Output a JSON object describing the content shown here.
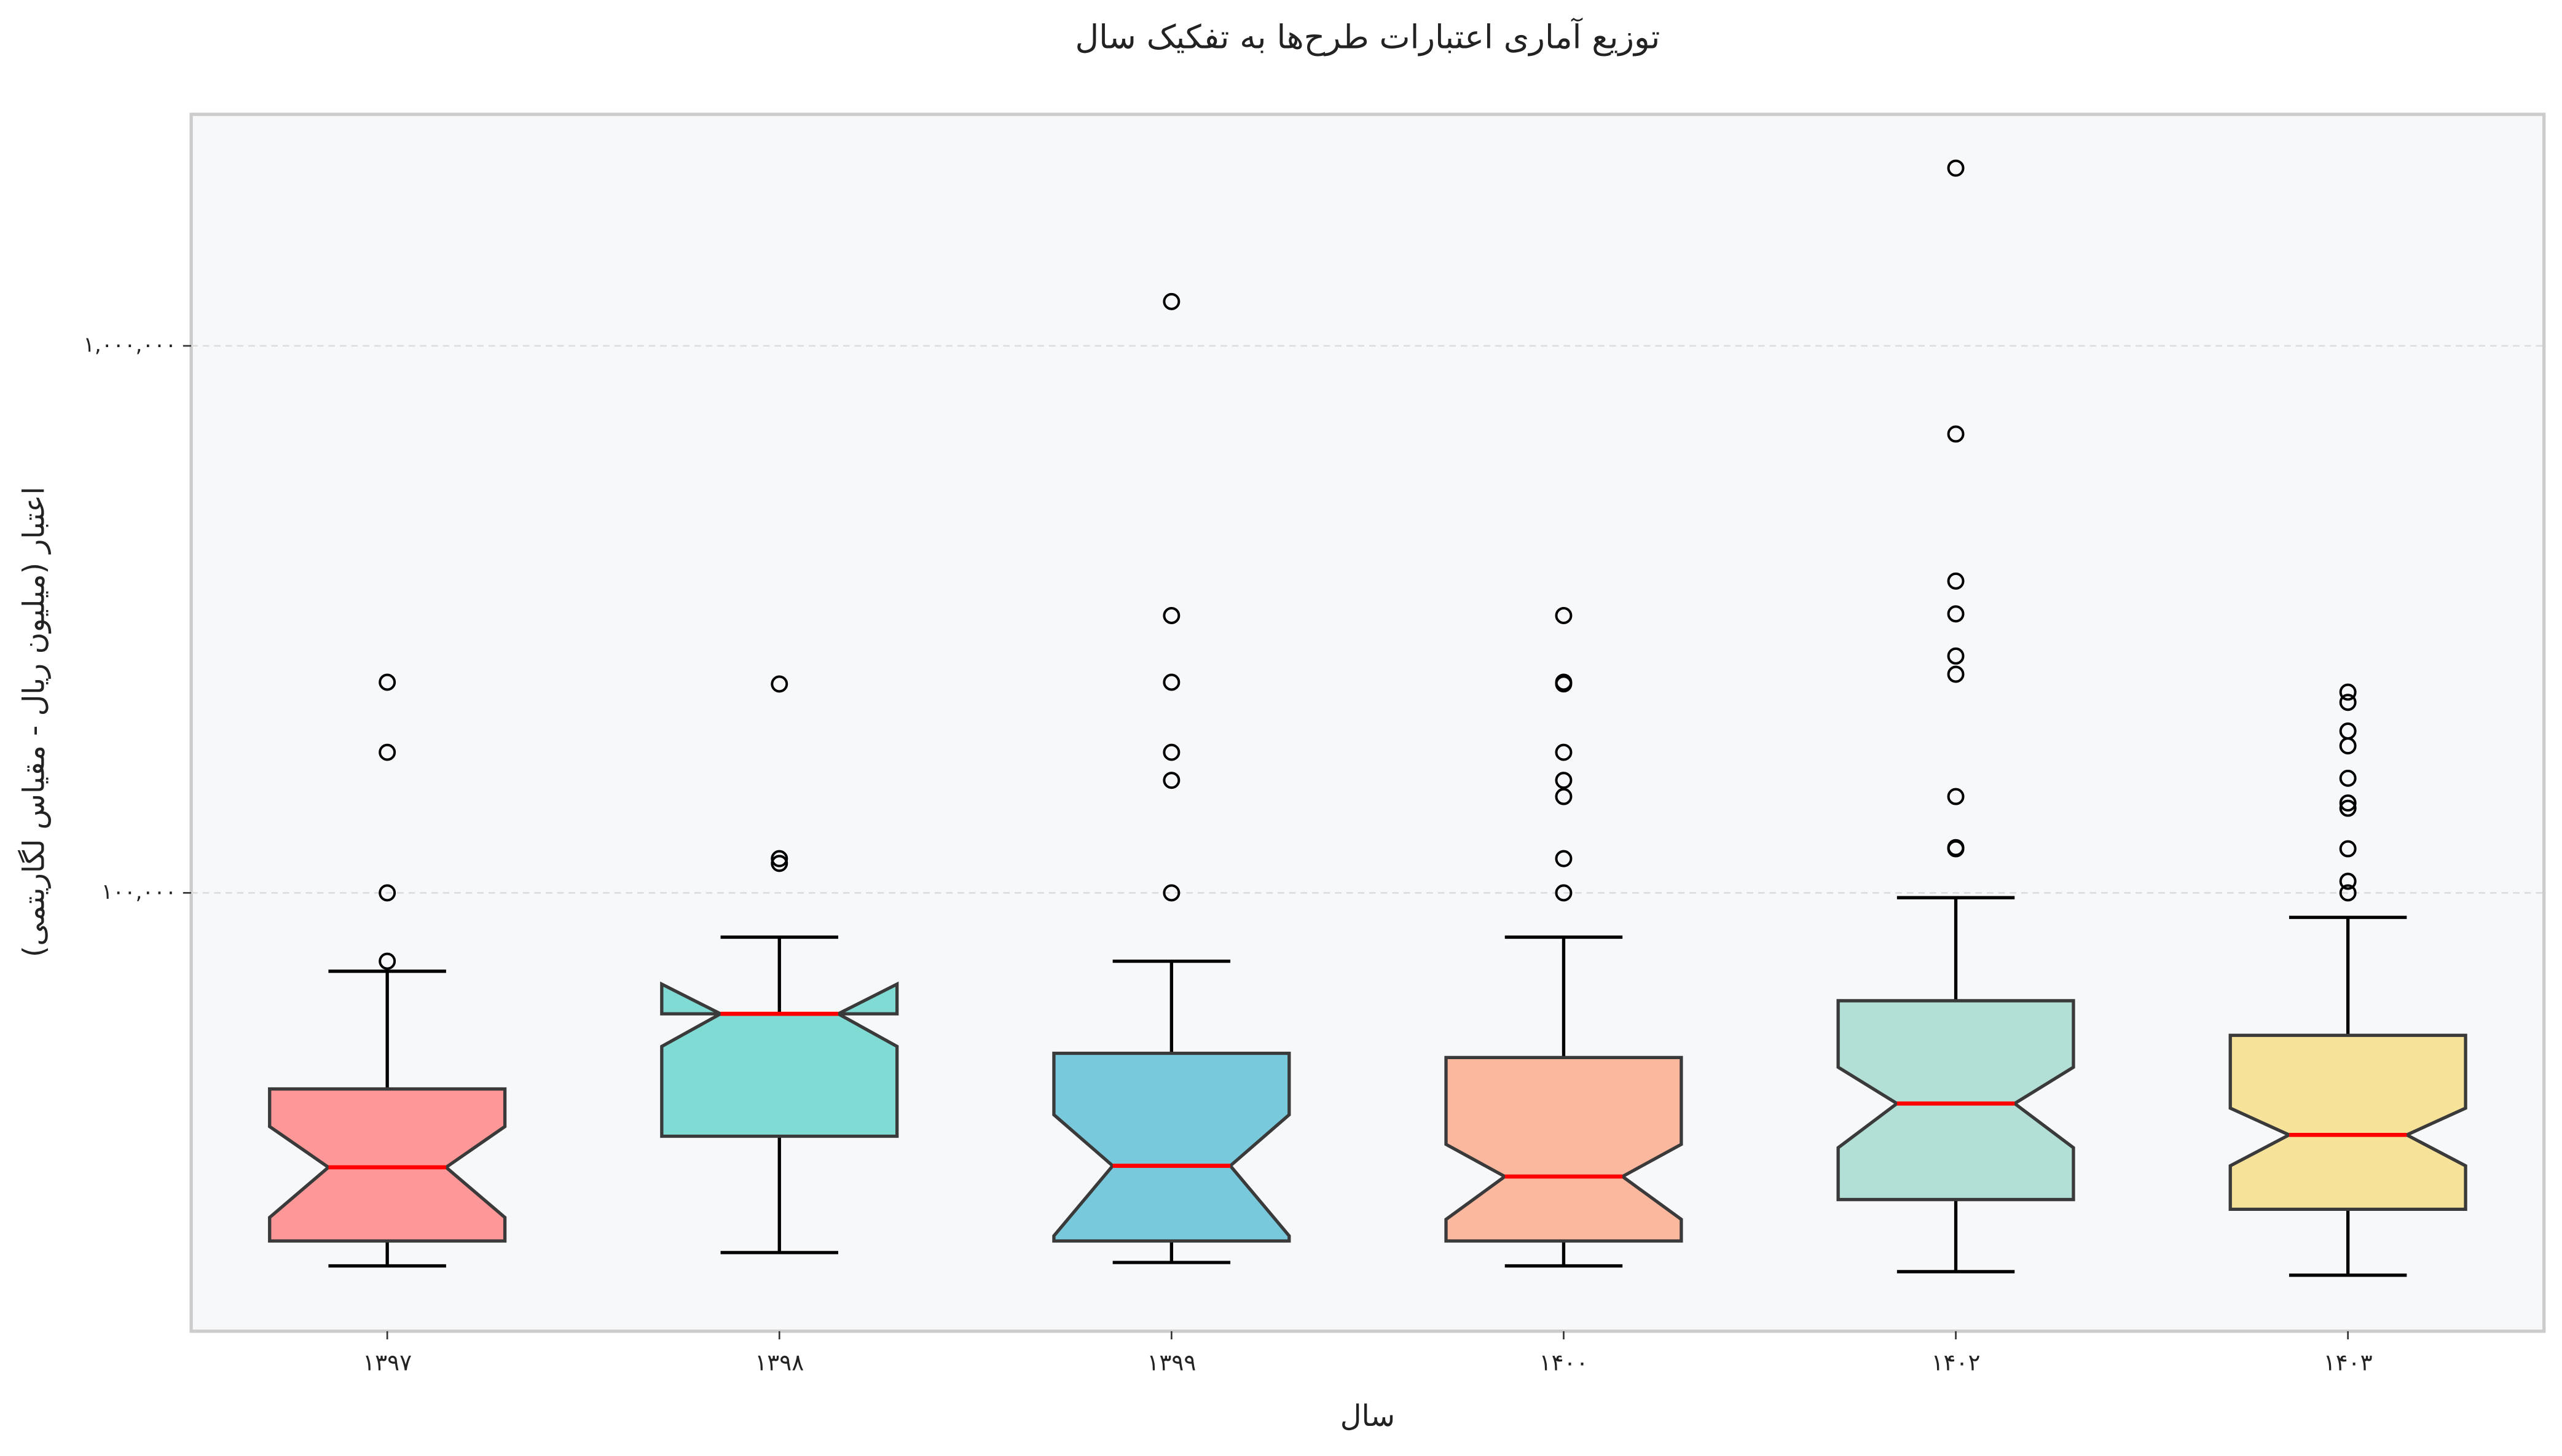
{
  "chart_data": {
    "type": "boxplot",
    "title": "توزیع آماری اعتبارات طرح‌ها به تفکیک سال",
    "xlabel": "سال",
    "ylabel": "اعتبار (میلیون ریال - مقیاس لگاریتمی)",
    "log_y": true,
    "grid": true,
    "notch": true,
    "ylim": [
      15800,
      2650000
    ],
    "yticks": [
      {
        "value": 100000,
        "label": "۱۰۰,۰۰۰"
      },
      {
        "value": 1000000,
        "label": "۱,۰۰۰,۰۰۰"
      }
    ],
    "categories": [
      "۱۳۹۷",
      "۱۳۹۸",
      "۱۳۹۹",
      "۱۴۰۰",
      "۱۴۰۲",
      "۱۴۰۳"
    ],
    "colors": [
      "#fe9898",
      "#7fdbd4",
      "#78c9dc",
      "#fcb89f",
      "#b3e0d6",
      "#f7e29a"
    ],
    "median_color": "#ff0000",
    "boxes": [
      {
        "whislo": 20800,
        "q1": 23100,
        "med": 31500,
        "q3": 43800,
        "whishi": 71900,
        "notch_lo": 25500,
        "notch_hi": 37400,
        "fliers": [
          75000,
          100000,
          180700,
          242700
        ]
      },
      {
        "whislo": 22000,
        "q1": 35900,
        "med": 60100,
        "q3": 60100,
        "whishi": 83000,
        "notch_lo": 52400,
        "notch_hi": 68100,
        "fliers": [
          115500,
          113200,
          240900
        ]
      },
      {
        "whislo": 21100,
        "q1": 23100,
        "med": 31700,
        "q3": 50900,
        "whishi": 75000,
        "notch_lo": 23600,
        "notch_hi": 39300,
        "fliers": [
          100000,
          160600,
          180700,
          242700,
          321300,
          1205000
        ]
      },
      {
        "whislo": 20800,
        "q1": 23100,
        "med": 30300,
        "q3": 50000,
        "whishi": 83000,
        "notch_lo": 25300,
        "notch_hi": 34700,
        "fliers": [
          100000,
          115500,
          150000,
          160600,
          180700,
          241000,
          242700,
          321300
        ]
      },
      {
        "whislo": 20300,
        "q1": 27500,
        "med": 41200,
        "q3": 63500,
        "whishi": 98000,
        "notch_lo": 34200,
        "notch_hi": 48000,
        "fliers": [
          120400,
          121000,
          150000,
          251000,
          271000,
          323600,
          371500,
          690000,
          2113000
        ]
      },
      {
        "whislo": 20000,
        "q1": 26400,
        "med": 36100,
        "q3": 54900,
        "whishi": 90200,
        "notch_lo": 31700,
        "notch_hi": 40400,
        "fliers": [
          100000,
          105000,
          120400,
          142800,
          146000,
          162000,
          185700,
          197600,
          223000,
          232800
        ]
      }
    ]
  }
}
